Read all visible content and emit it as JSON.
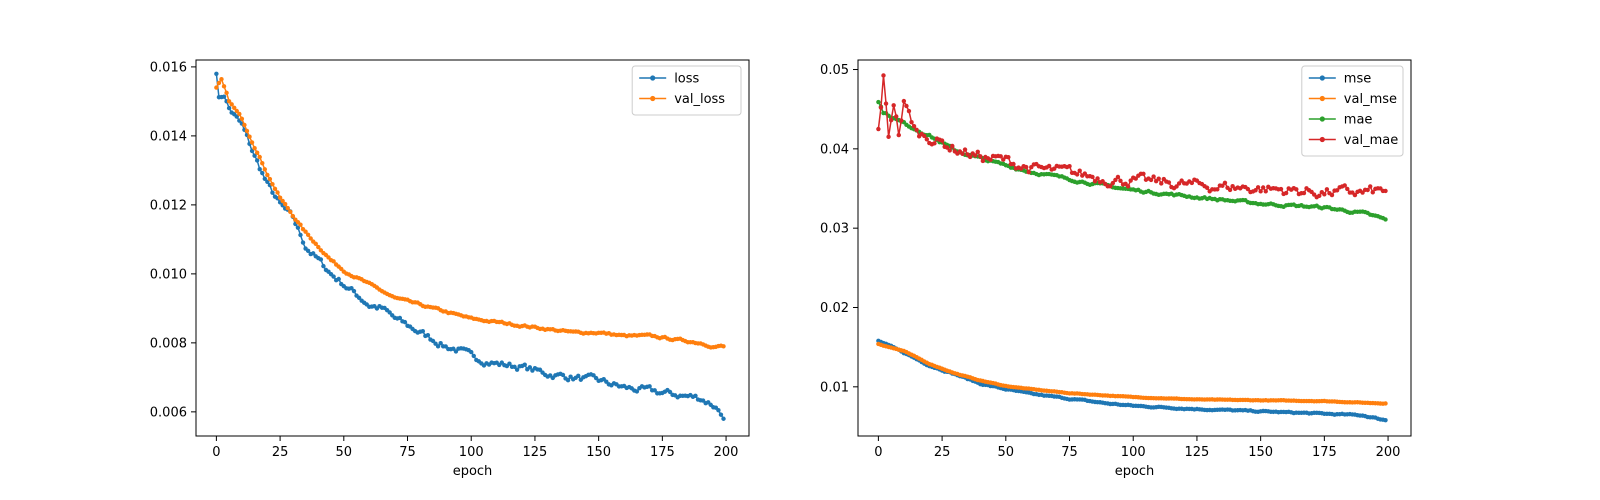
{
  "chart_data": [
    {
      "type": "line",
      "xlabel": "epoch",
      "ylabel": "",
      "xlim": [
        -8,
        209
      ],
      "ylim": [
        0.0053,
        0.0162
      ],
      "xticks": [
        "0",
        "25",
        "50",
        "75",
        "100",
        "125",
        "150",
        "175",
        "200"
      ],
      "yticks": [
        "0.006",
        "0.008",
        "0.010",
        "0.012",
        "0.014",
        "0.016"
      ],
      "legend_position": "top-right",
      "grid": false,
      "series": [
        {
          "name": "loss",
          "color": "#1f77b4",
          "keypoints": [
            [
              0,
              0.0158
            ],
            [
              1,
              0.0151
            ],
            [
              3,
              0.0152
            ],
            [
              5,
              0.0148
            ],
            [
              10,
              0.0143
            ],
            [
              15,
              0.0134
            ],
            [
              20,
              0.0126
            ],
            [
              25,
              0.012
            ],
            [
              30,
              0.0116
            ],
            [
              35,
              0.0108
            ],
            [
              40,
              0.0104
            ],
            [
              45,
              0.01
            ],
            [
              50,
              0.0097
            ],
            [
              55,
              0.0094
            ],
            [
              60,
              0.0091
            ],
            [
              65,
              0.009
            ],
            [
              70,
              0.0087
            ],
            [
              75,
              0.0085
            ],
            [
              80,
              0.0083
            ],
            [
              85,
              0.0081
            ],
            [
              90,
              0.0079
            ],
            [
              95,
              0.0078
            ],
            [
              100,
              0.0076
            ],
            [
              110,
              0.0074
            ],
            [
              120,
              0.0073
            ],
            [
              130,
              0.0071
            ],
            [
              140,
              0.007
            ],
            [
              150,
              0.0069
            ],
            [
              160,
              0.0067
            ],
            [
              170,
              0.0066
            ],
            [
              180,
              0.0065
            ],
            [
              190,
              0.0064
            ],
            [
              195,
              0.0062
            ],
            [
              198,
              0.006
            ],
            [
              199,
              0.0058
            ]
          ],
          "noise": 0.00012
        },
        {
          "name": "val_loss",
          "color": "#ff7f0e",
          "keypoints": [
            [
              0,
              0.0154
            ],
            [
              2,
              0.0156
            ],
            [
              5,
              0.015
            ],
            [
              10,
              0.0145
            ],
            [
              15,
              0.0137
            ],
            [
              20,
              0.0129
            ],
            [
              25,
              0.0122
            ],
            [
              30,
              0.0117
            ],
            [
              35,
              0.0112
            ],
            [
              40,
              0.0108
            ],
            [
              45,
              0.0104
            ],
            [
              50,
              0.0101
            ],
            [
              55,
              0.0099
            ],
            [
              60,
              0.0097
            ],
            [
              65,
              0.0095
            ],
            [
              70,
              0.0093
            ],
            [
              75,
              0.0092
            ],
            [
              80,
              0.0091
            ],
            [
              90,
              0.0089
            ],
            [
              100,
              0.0087
            ],
            [
              110,
              0.0086
            ],
            [
              120,
              0.0085
            ],
            [
              130,
              0.0084
            ],
            [
              140,
              0.0083
            ],
            [
              150,
              0.0083
            ],
            [
              160,
              0.0082
            ],
            [
              170,
              0.0082
            ],
            [
              180,
              0.0081
            ],
            [
              190,
              0.008
            ],
            [
              195,
              0.0079
            ],
            [
              199,
              0.0079
            ]
          ],
          "noise": 4e-05
        }
      ]
    },
    {
      "type": "line",
      "xlabel": "epoch",
      "ylabel": "",
      "xlim": [
        -8,
        209
      ],
      "ylim": [
        0.0038,
        0.0512
      ],
      "xticks": [
        "0",
        "25",
        "50",
        "75",
        "100",
        "125",
        "150",
        "175",
        "200"
      ],
      "yticks": [
        "0.01",
        "0.02",
        "0.03",
        "0.04",
        "0.05"
      ],
      "legend_position": "top-right",
      "grid": false,
      "series": [
        {
          "name": "mse",
          "color": "#1f77b4",
          "keypoints": [
            [
              0,
              0.0158
            ],
            [
              10,
              0.0143
            ],
            [
              20,
              0.0127
            ],
            [
              30,
              0.0116
            ],
            [
              40,
              0.0104
            ],
            [
              50,
              0.0097
            ],
            [
              60,
              0.0091
            ],
            [
              75,
              0.0085
            ],
            [
              90,
              0.0079
            ],
            [
              100,
              0.0076
            ],
            [
              125,
              0.0072
            ],
            [
              150,
              0.0069
            ],
            [
              175,
              0.0066
            ],
            [
              190,
              0.0064
            ],
            [
              199,
              0.0058
            ]
          ],
          "noise": 0.0001
        },
        {
          "name": "val_mse",
          "color": "#ff7f0e",
          "keypoints": [
            [
              0,
              0.0154
            ],
            [
              10,
              0.0145
            ],
            [
              20,
              0.0129
            ],
            [
              30,
              0.0117
            ],
            [
              40,
              0.0108
            ],
            [
              50,
              0.0101
            ],
            [
              60,
              0.0097
            ],
            [
              75,
              0.0092
            ],
            [
              90,
              0.0089
            ],
            [
              100,
              0.0087
            ],
            [
              125,
              0.0084
            ],
            [
              150,
              0.0083
            ],
            [
              175,
              0.0082
            ],
            [
              190,
              0.008
            ],
            [
              199,
              0.0079
            ]
          ],
          "noise": 4e-05
        },
        {
          "name": "mae",
          "color": "#2ca02c",
          "keypoints": [
            [
              0,
              0.0459
            ],
            [
              2,
              0.0446
            ],
            [
              10,
              0.0432
            ],
            [
              20,
              0.0417
            ],
            [
              30,
              0.0398
            ],
            [
              40,
              0.0388
            ],
            [
              50,
              0.0379
            ],
            [
              60,
              0.0371
            ],
            [
              75,
              0.0362
            ],
            [
              90,
              0.0353
            ],
            [
              100,
              0.0348
            ],
            [
              125,
              0.0339
            ],
            [
              150,
              0.0331
            ],
            [
              175,
              0.0326
            ],
            [
              190,
              0.0319
            ],
            [
              199,
              0.0311
            ]
          ],
          "noise": 0.0002
        },
        {
          "name": "val_mae",
          "color": "#d62728",
          "keypoints": [
            [
              0,
              0.0425
            ],
            [
              1,
              0.0455
            ],
            [
              2,
              0.049
            ],
            [
              4,
              0.0416
            ],
            [
              6,
              0.046
            ],
            [
              8,
              0.042
            ],
            [
              10,
              0.0458
            ],
            [
              15,
              0.042
            ],
            [
              20,
              0.0415
            ],
            [
              30,
              0.04
            ],
            [
              40,
              0.039
            ],
            [
              50,
              0.0385
            ],
            [
              60,
              0.0375
            ],
            [
              75,
              0.037
            ],
            [
              90,
              0.0362
            ],
            [
              100,
              0.036
            ],
            [
              125,
              0.0354
            ],
            [
              150,
              0.035
            ],
            [
              175,
              0.0345
            ],
            [
              190,
              0.0345
            ],
            [
              199,
              0.0347
            ]
          ],
          "noise": 0.0008
        }
      ]
    }
  ]
}
